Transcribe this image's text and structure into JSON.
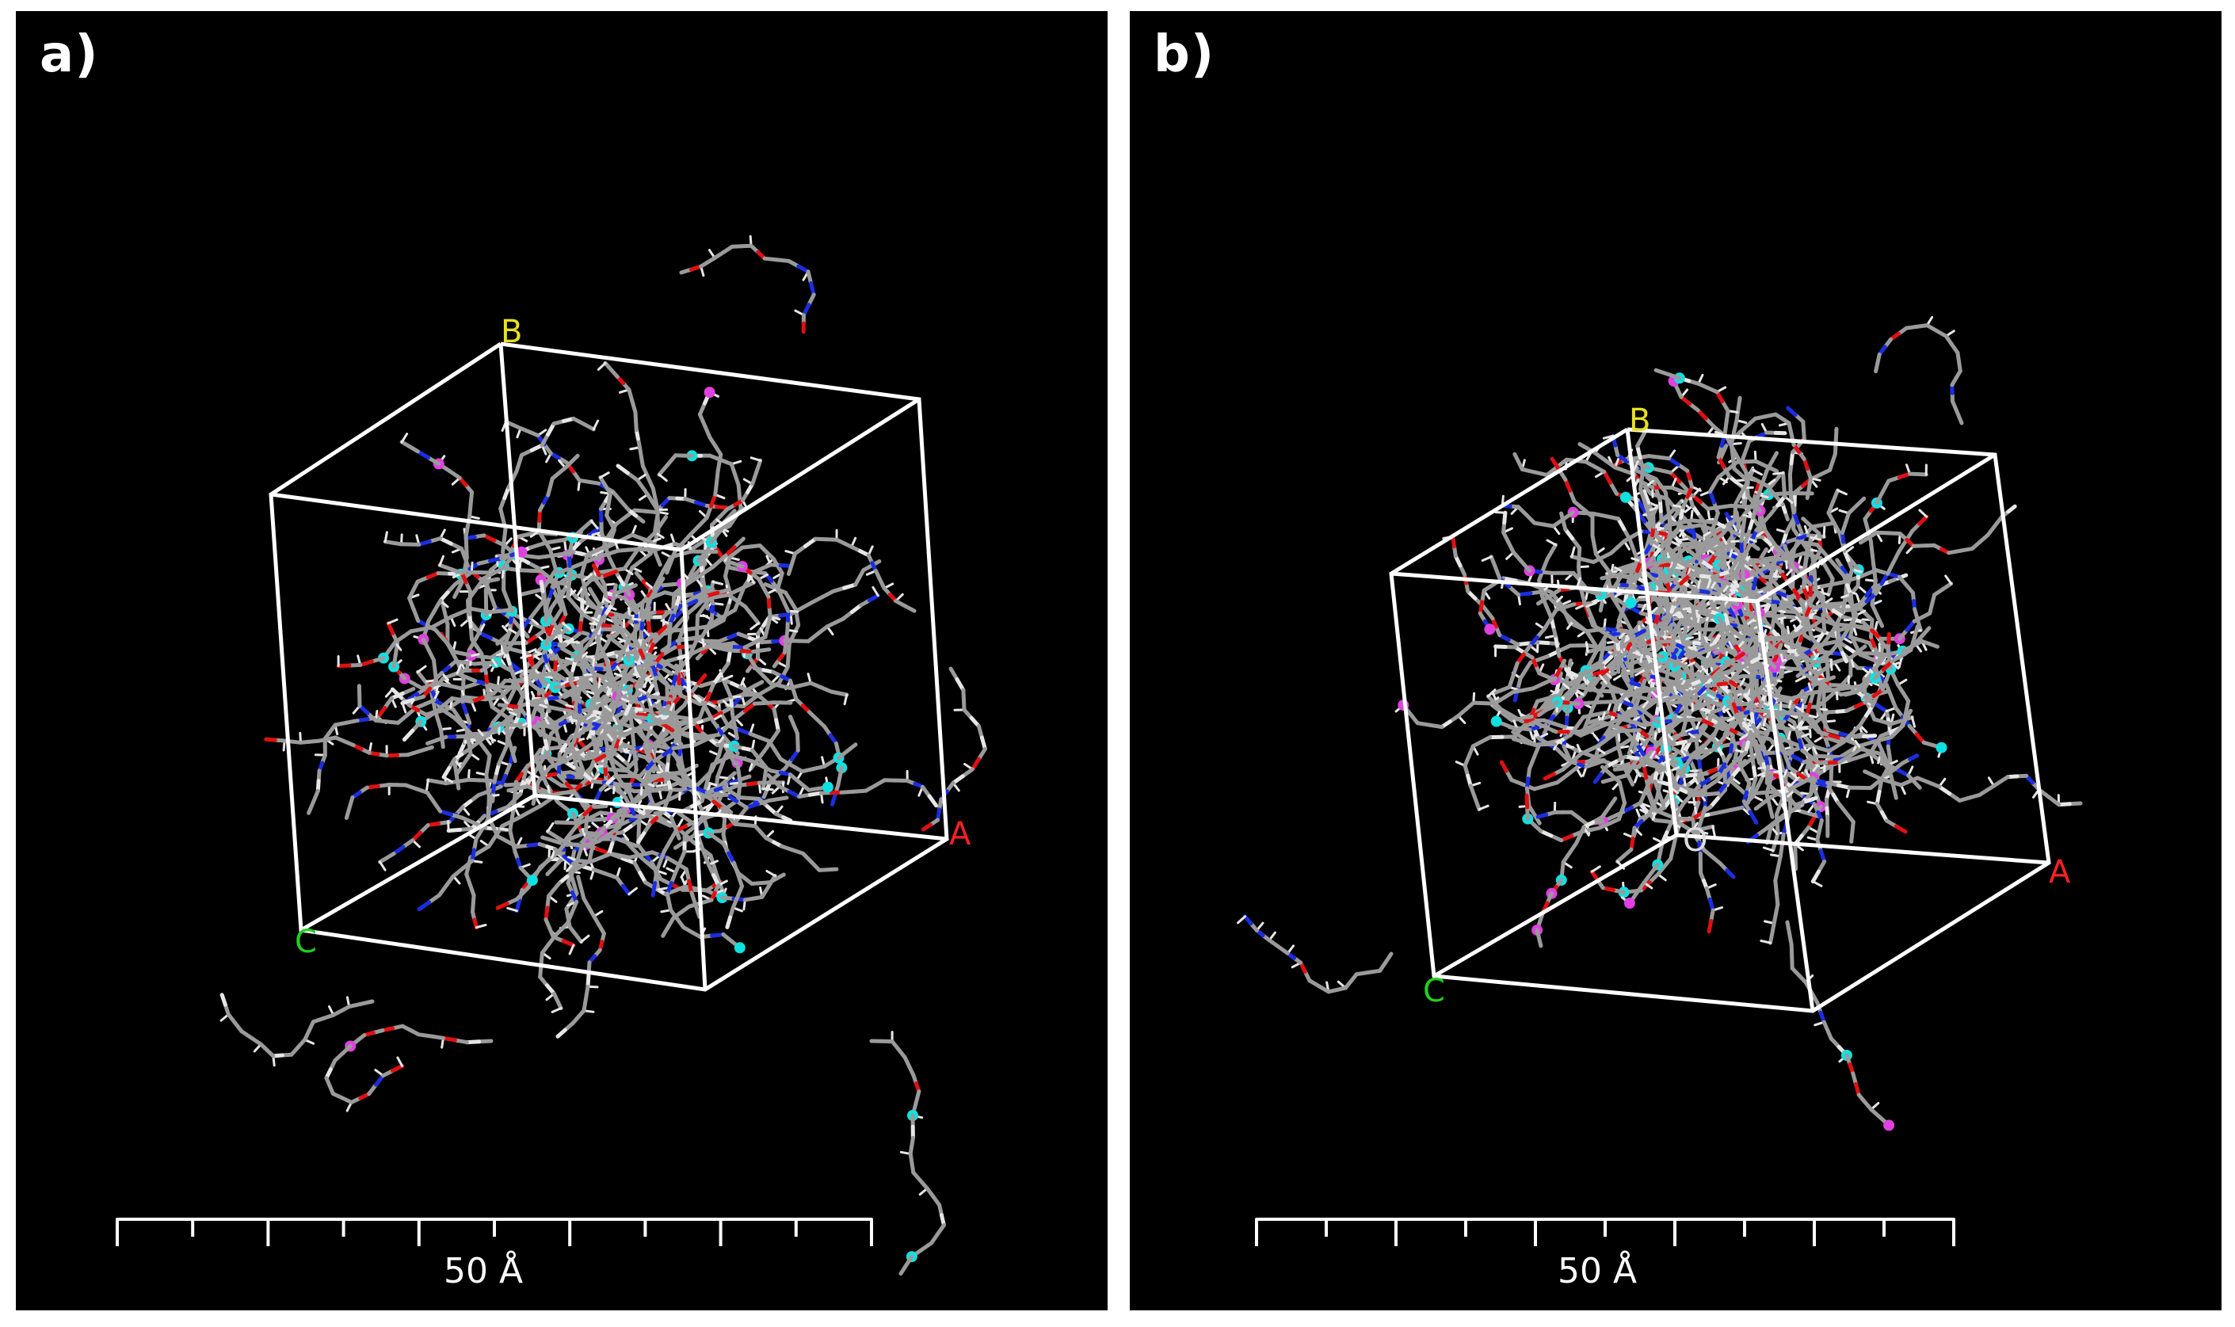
{
  "panels": [
    {
      "id": "a",
      "label": "a)",
      "axis_labels": {
        "a": "A",
        "b": "B",
        "c": "C"
      },
      "scale_bar": {
        "label": "50 Å",
        "ticks": 11
      }
    },
    {
      "id": "b",
      "label": "b)",
      "axis_labels": {
        "a": "A",
        "b": "B",
        "c": "C"
      },
      "scale_bar": {
        "label": "50 Å",
        "ticks": 11
      }
    }
  ],
  "colors": {
    "background": "#000000",
    "box": "#ffffff",
    "axis_a": "#ff2020",
    "axis_b": "#e8e020",
    "axis_c": "#20d020",
    "carbon": "#9a9a9a",
    "hydrogen": "#e6e6e6",
    "oxygen": "#e01010",
    "nitrogen": "#1a2ee0",
    "fluorine": "#10e0e0",
    "other": "#e040e0"
  }
}
